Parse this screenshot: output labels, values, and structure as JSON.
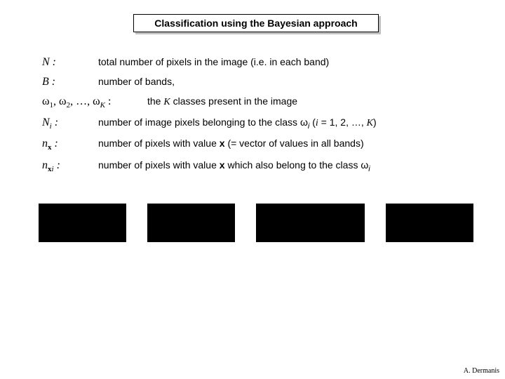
{
  "title": "Classification using the Bayesian approach",
  "definitions": {
    "N_desc": "total number of pixels in the image (i.e. in each band)",
    "B_desc": "number of bands,",
    "classes_term_pre": "ω",
    "classes_desc_pre": "the ",
    "classes_desc_K": "K",
    "classes_desc_post": " classes present in the image",
    "Ni_desc_pre": "number of image pixels belonging to the class ω",
    "Ni_desc_paren": " (",
    "Ni_desc_i": "i",
    "Ni_desc_eq": " = 1, 2, …, ",
    "Ni_desc_K": "K",
    "Ni_desc_close": ")",
    "nx_desc_pre": "number of pixels with value ",
    "nx_desc_x": "x",
    "nx_desc_post": " (= vector of values in all bands)",
    "nxi_desc_pre": "number of pixels with value ",
    "nxi_desc_x": "x",
    "nxi_desc_mid": " which also belong to the class ω"
  },
  "boxes": {
    "widths": [
      125,
      125,
      155,
      125
    ],
    "height": 55,
    "color": "#000000"
  },
  "footer": "A. Dermanis"
}
